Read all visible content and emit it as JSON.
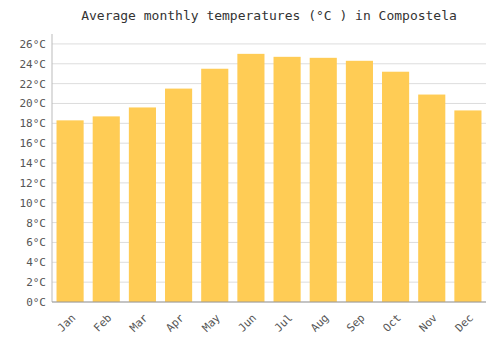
{
  "chart_data": {
    "type": "bar",
    "title": "Average monthly temperatures (°C ) in Compostela",
    "categories": [
      "Jan",
      "Feb",
      "Mar",
      "Apr",
      "May",
      "Jun",
      "Jul",
      "Aug",
      "Sep",
      "Oct",
      "Nov",
      "Dec"
    ],
    "values": [
      18.3,
      18.7,
      19.6,
      21.5,
      23.5,
      25.0,
      24.7,
      24.6,
      24.3,
      23.2,
      20.9,
      19.3
    ],
    "color": "#FFCC55",
    "ylim": [
      0,
      27
    ],
    "yticks": [
      {
        "value": 0,
        "label": "0°C"
      },
      {
        "value": 2,
        "label": "2°C"
      },
      {
        "value": 4,
        "label": "4°C"
      },
      {
        "value": 6,
        "label": "6°C"
      },
      {
        "value": 8,
        "label": "8°C"
      },
      {
        "value": 10,
        "label": "10°C"
      },
      {
        "value": 12,
        "label": "12°C"
      },
      {
        "value": 14,
        "label": "14°C"
      },
      {
        "value": 16,
        "label": "16°C"
      },
      {
        "value": 18,
        "label": "18°C"
      },
      {
        "value": 20,
        "label": "20°C"
      },
      {
        "value": 22,
        "label": "22°C"
      },
      {
        "value": 24,
        "label": "24°C"
      },
      {
        "value": 26,
        "label": "26°C"
      }
    ],
    "grid": true
  }
}
